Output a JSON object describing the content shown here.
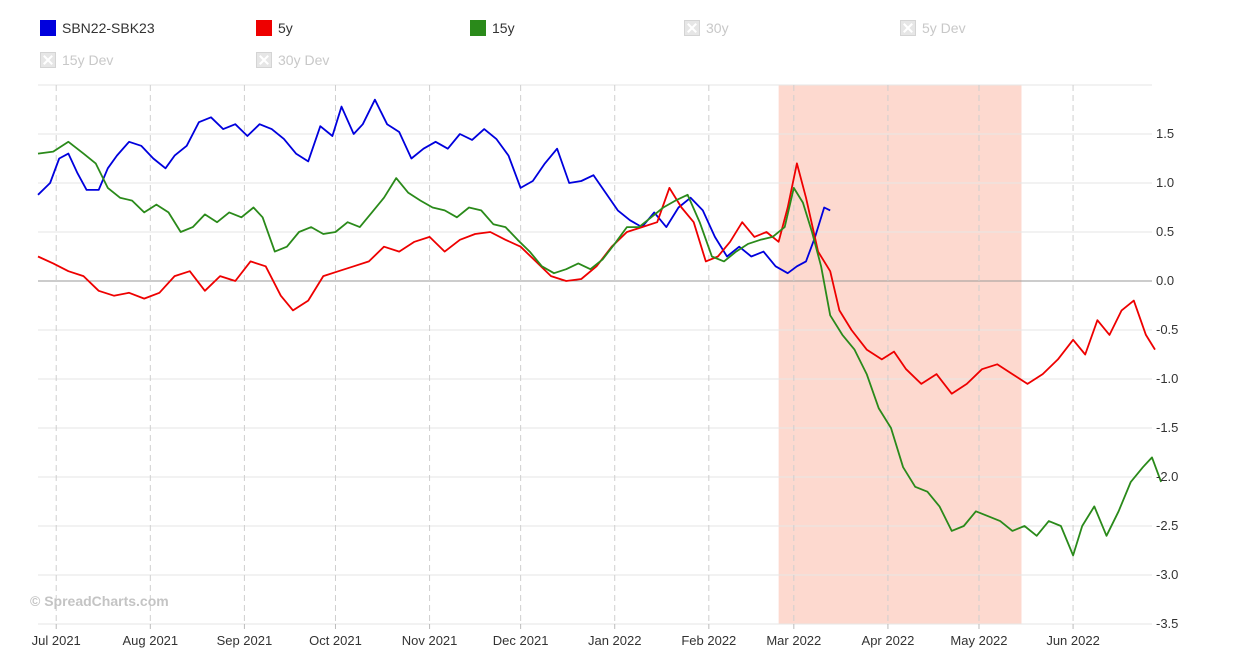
{
  "legend": [
    {
      "name": "SBN22-SBK23",
      "color": "#0000dd",
      "visible": true
    },
    {
      "name": "5y",
      "color": "#ee0000",
      "visible": true
    },
    {
      "name": "15y",
      "color": "#2a8a1a",
      "visible": true
    },
    {
      "name": "30y",
      "visible": false
    },
    {
      "name": "5y Dev",
      "visible": false
    },
    {
      "name": "15y Dev",
      "visible": false
    },
    {
      "name": "30y Dev",
      "visible": false
    }
  ],
  "watermark": "© SpreadCharts.com",
  "chart_data": {
    "type": "line",
    "x_type": "date",
    "x_ticks": [
      "Jul 2021",
      "Aug 2021",
      "Sep 2021",
      "Oct 2021",
      "Nov 2021",
      "Dec 2021",
      "Jan 2022",
      "Feb 2022",
      "Mar 2022",
      "Apr 2022",
      "May 2022",
      "Jun 2022"
    ],
    "x_range": [
      "2021-06-25",
      "2022-06-27"
    ],
    "y_ticks": [
      "1.5",
      "1.0",
      "0.5",
      "0.0",
      "-0.5",
      "-1.0",
      "-1.5",
      "-2.0",
      "-2.5",
      "-3.0",
      "-3.5"
    ],
    "ylim": [
      -3.5,
      2.0
    ],
    "y_axis_side": "right",
    "grid": true,
    "zero_line": true,
    "highlight_band": {
      "from": "2022-02-24",
      "to": "2022-05-15",
      "color": "#fdd9cf"
    },
    "series": [
      {
        "name": "SBN22-SBK23",
        "color": "#0000dd",
        "points": [
          [
            "2021-06-25",
            0.88
          ],
          [
            "2021-06-29",
            1.0
          ],
          [
            "2021-07-02",
            1.25
          ],
          [
            "2021-07-05",
            1.3
          ],
          [
            "2021-07-08",
            1.1
          ],
          [
            "2021-07-11",
            0.93
          ],
          [
            "2021-07-15",
            0.93
          ],
          [
            "2021-07-18",
            1.15
          ],
          [
            "2021-07-21",
            1.28
          ],
          [
            "2021-07-25",
            1.42
          ],
          [
            "2021-07-29",
            1.38
          ],
          [
            "2021-08-02",
            1.25
          ],
          [
            "2021-08-06",
            1.15
          ],
          [
            "2021-08-09",
            1.28
          ],
          [
            "2021-08-13",
            1.38
          ],
          [
            "2021-08-17",
            1.62
          ],
          [
            "2021-08-21",
            1.67
          ],
          [
            "2021-08-25",
            1.55
          ],
          [
            "2021-08-29",
            1.6
          ],
          [
            "2021-09-02",
            1.48
          ],
          [
            "2021-09-06",
            1.6
          ],
          [
            "2021-09-10",
            1.55
          ],
          [
            "2021-09-14",
            1.45
          ],
          [
            "2021-09-18",
            1.3
          ],
          [
            "2021-09-22",
            1.22
          ],
          [
            "2021-09-26",
            1.58
          ],
          [
            "2021-09-30",
            1.48
          ],
          [
            "2021-10-03",
            1.78
          ],
          [
            "2021-10-07",
            1.5
          ],
          [
            "2021-10-10",
            1.6
          ],
          [
            "2021-10-14",
            1.85
          ],
          [
            "2021-10-18",
            1.6
          ],
          [
            "2021-10-22",
            1.52
          ],
          [
            "2021-10-26",
            1.25
          ],
          [
            "2021-10-30",
            1.35
          ],
          [
            "2021-11-03",
            1.42
          ],
          [
            "2021-11-07",
            1.35
          ],
          [
            "2021-11-11",
            1.5
          ],
          [
            "2021-11-15",
            1.44
          ],
          [
            "2021-11-19",
            1.55
          ],
          [
            "2021-11-23",
            1.45
          ],
          [
            "2021-11-27",
            1.28
          ],
          [
            "2021-12-01",
            0.95
          ],
          [
            "2021-12-05",
            1.02
          ],
          [
            "2021-12-09",
            1.2
          ],
          [
            "2021-12-13",
            1.35
          ],
          [
            "2021-12-17",
            1.0
          ],
          [
            "2021-12-21",
            1.02
          ],
          [
            "2021-12-25",
            1.08
          ],
          [
            "2021-12-29",
            0.9
          ],
          [
            "2022-01-02",
            0.72
          ],
          [
            "2022-01-06",
            0.62
          ],
          [
            "2022-01-10",
            0.55
          ],
          [
            "2022-01-14",
            0.7
          ],
          [
            "2022-01-18",
            0.55
          ],
          [
            "2022-01-22",
            0.75
          ],
          [
            "2022-01-26",
            0.85
          ],
          [
            "2022-01-30",
            0.72
          ],
          [
            "2022-02-03",
            0.45
          ],
          [
            "2022-02-07",
            0.25
          ],
          [
            "2022-02-11",
            0.35
          ],
          [
            "2022-02-15",
            0.25
          ],
          [
            "2022-02-19",
            0.3
          ],
          [
            "2022-02-23",
            0.15
          ],
          [
            "2022-02-27",
            0.08
          ],
          [
            "2022-03-02",
            0.15
          ],
          [
            "2022-03-05",
            0.2
          ],
          [
            "2022-03-08",
            0.45
          ],
          [
            "2022-03-11",
            0.75
          ],
          [
            "2022-03-13",
            0.72
          ]
        ]
      },
      {
        "name": "5y",
        "color": "#ee0000",
        "points": [
          [
            "2021-06-25",
            0.25
          ],
          [
            "2021-06-30",
            0.18
          ],
          [
            "2021-07-05",
            0.1
          ],
          [
            "2021-07-10",
            0.05
          ],
          [
            "2021-07-15",
            -0.1
          ],
          [
            "2021-07-20",
            -0.15
          ],
          [
            "2021-07-25",
            -0.12
          ],
          [
            "2021-07-30",
            -0.18
          ],
          [
            "2021-08-04",
            -0.12
          ],
          [
            "2021-08-09",
            0.05
          ],
          [
            "2021-08-14",
            0.1
          ],
          [
            "2021-08-19",
            -0.1
          ],
          [
            "2021-08-24",
            0.05
          ],
          [
            "2021-08-29",
            0.0
          ],
          [
            "2021-09-03",
            0.2
          ],
          [
            "2021-09-08",
            0.15
          ],
          [
            "2021-09-13",
            -0.15
          ],
          [
            "2021-09-17",
            -0.3
          ],
          [
            "2021-09-22",
            -0.2
          ],
          [
            "2021-09-27",
            0.05
          ],
          [
            "2021-10-02",
            0.1
          ],
          [
            "2021-10-07",
            0.15
          ],
          [
            "2021-10-12",
            0.2
          ],
          [
            "2021-10-17",
            0.35
          ],
          [
            "2021-10-22",
            0.3
          ],
          [
            "2021-10-27",
            0.4
          ],
          [
            "2021-11-01",
            0.45
          ],
          [
            "2021-11-06",
            0.3
          ],
          [
            "2021-11-11",
            0.42
          ],
          [
            "2021-11-16",
            0.48
          ],
          [
            "2021-11-21",
            0.5
          ],
          [
            "2021-11-26",
            0.42
          ],
          [
            "2021-12-01",
            0.35
          ],
          [
            "2021-12-06",
            0.2
          ],
          [
            "2021-12-11",
            0.05
          ],
          [
            "2021-12-16",
            0.0
          ],
          [
            "2021-12-21",
            0.02
          ],
          [
            "2021-12-26",
            0.15
          ],
          [
            "2021-12-31",
            0.35
          ],
          [
            "2022-01-05",
            0.5
          ],
          [
            "2022-01-10",
            0.55
          ],
          [
            "2022-01-15",
            0.6
          ],
          [
            "2022-01-19",
            0.95
          ],
          [
            "2022-01-23",
            0.75
          ],
          [
            "2022-01-27",
            0.6
          ],
          [
            "2022-01-31",
            0.2
          ],
          [
            "2022-02-04",
            0.25
          ],
          [
            "2022-02-08",
            0.4
          ],
          [
            "2022-02-12",
            0.6
          ],
          [
            "2022-02-16",
            0.45
          ],
          [
            "2022-02-20",
            0.5
          ],
          [
            "2022-02-24",
            0.4
          ],
          [
            "2022-02-27",
            0.75
          ],
          [
            "2022-03-02",
            1.2
          ],
          [
            "2022-03-05",
            0.85
          ],
          [
            "2022-03-09",
            0.3
          ],
          [
            "2022-03-13",
            0.1
          ],
          [
            "2022-03-16",
            -0.3
          ],
          [
            "2022-03-20",
            -0.5
          ],
          [
            "2022-03-25",
            -0.7
          ],
          [
            "2022-03-30",
            -0.8
          ],
          [
            "2022-04-03",
            -0.72
          ],
          [
            "2022-04-07",
            -0.9
          ],
          [
            "2022-04-12",
            -1.05
          ],
          [
            "2022-04-17",
            -0.95
          ],
          [
            "2022-04-22",
            -1.15
          ],
          [
            "2022-04-27",
            -1.05
          ],
          [
            "2022-05-02",
            -0.9
          ],
          [
            "2022-05-07",
            -0.85
          ],
          [
            "2022-05-12",
            -0.95
          ],
          [
            "2022-05-17",
            -1.05
          ],
          [
            "2022-05-22",
            -0.95
          ],
          [
            "2022-05-27",
            -0.8
          ],
          [
            "2022-06-01",
            -0.6
          ],
          [
            "2022-06-05",
            -0.75
          ],
          [
            "2022-06-09",
            -0.4
          ],
          [
            "2022-06-13",
            -0.55
          ],
          [
            "2022-06-17",
            -0.3
          ],
          [
            "2022-06-21",
            -0.2
          ],
          [
            "2022-06-25",
            -0.55
          ],
          [
            "2022-06-28",
            -0.7
          ]
        ]
      },
      {
        "name": "15y",
        "color": "#2a8a1a",
        "points": [
          [
            "2021-06-25",
            1.3
          ],
          [
            "2021-06-30",
            1.32
          ],
          [
            "2021-07-05",
            1.42
          ],
          [
            "2021-07-10",
            1.3
          ],
          [
            "2021-07-14",
            1.2
          ],
          [
            "2021-07-18",
            0.95
          ],
          [
            "2021-07-22",
            0.85
          ],
          [
            "2021-07-26",
            0.82
          ],
          [
            "2021-07-30",
            0.7
          ],
          [
            "2021-08-03",
            0.78
          ],
          [
            "2021-08-07",
            0.7
          ],
          [
            "2021-08-11",
            0.5
          ],
          [
            "2021-08-15",
            0.55
          ],
          [
            "2021-08-19",
            0.68
          ],
          [
            "2021-08-23",
            0.6
          ],
          [
            "2021-08-27",
            0.7
          ],
          [
            "2021-08-31",
            0.65
          ],
          [
            "2021-09-04",
            0.75
          ],
          [
            "2021-09-07",
            0.65
          ],
          [
            "2021-09-11",
            0.3
          ],
          [
            "2021-09-15",
            0.35
          ],
          [
            "2021-09-19",
            0.5
          ],
          [
            "2021-09-23",
            0.55
          ],
          [
            "2021-09-27",
            0.48
          ],
          [
            "2021-10-01",
            0.5
          ],
          [
            "2021-10-05",
            0.6
          ],
          [
            "2021-10-09",
            0.55
          ],
          [
            "2021-10-13",
            0.7
          ],
          [
            "2021-10-17",
            0.85
          ],
          [
            "2021-10-21",
            1.05
          ],
          [
            "2021-10-25",
            0.9
          ],
          [
            "2021-10-29",
            0.82
          ],
          [
            "2021-11-02",
            0.75
          ],
          [
            "2021-11-06",
            0.72
          ],
          [
            "2021-11-10",
            0.65
          ],
          [
            "2021-11-14",
            0.75
          ],
          [
            "2021-11-18",
            0.72
          ],
          [
            "2021-11-22",
            0.58
          ],
          [
            "2021-11-26",
            0.55
          ],
          [
            "2021-11-30",
            0.42
          ],
          [
            "2021-12-04",
            0.3
          ],
          [
            "2021-12-08",
            0.15
          ],
          [
            "2021-12-12",
            0.08
          ],
          [
            "2021-12-16",
            0.12
          ],
          [
            "2021-12-20",
            0.18
          ],
          [
            "2021-12-24",
            0.12
          ],
          [
            "2021-12-28",
            0.22
          ],
          [
            "2022-01-01",
            0.38
          ],
          [
            "2022-01-05",
            0.55
          ],
          [
            "2022-01-09",
            0.55
          ],
          [
            "2022-01-13",
            0.65
          ],
          [
            "2022-01-17",
            0.75
          ],
          [
            "2022-01-21",
            0.82
          ],
          [
            "2022-01-25",
            0.88
          ],
          [
            "2022-01-29",
            0.6
          ],
          [
            "2022-02-02",
            0.25
          ],
          [
            "2022-02-06",
            0.2
          ],
          [
            "2022-02-10",
            0.3
          ],
          [
            "2022-02-14",
            0.38
          ],
          [
            "2022-02-18",
            0.42
          ],
          [
            "2022-02-22",
            0.45
          ],
          [
            "2022-02-26",
            0.55
          ],
          [
            "2022-03-01",
            0.95
          ],
          [
            "2022-03-04",
            0.8
          ],
          [
            "2022-03-07",
            0.5
          ],
          [
            "2022-03-10",
            0.15
          ],
          [
            "2022-03-13",
            -0.35
          ],
          [
            "2022-03-17",
            -0.55
          ],
          [
            "2022-03-21",
            -0.7
          ],
          [
            "2022-03-25",
            -0.95
          ],
          [
            "2022-03-29",
            -1.3
          ],
          [
            "2022-04-02",
            -1.5
          ],
          [
            "2022-04-06",
            -1.9
          ],
          [
            "2022-04-10",
            -2.1
          ],
          [
            "2022-04-14",
            -2.15
          ],
          [
            "2022-04-18",
            -2.3
          ],
          [
            "2022-04-22",
            -2.55
          ],
          [
            "2022-04-26",
            -2.5
          ],
          [
            "2022-04-30",
            -2.35
          ],
          [
            "2022-05-04",
            -2.4
          ],
          [
            "2022-05-08",
            -2.45
          ],
          [
            "2022-05-12",
            -2.55
          ],
          [
            "2022-05-16",
            -2.5
          ],
          [
            "2022-05-20",
            -2.6
          ],
          [
            "2022-05-24",
            -2.45
          ],
          [
            "2022-05-28",
            -2.5
          ],
          [
            "2022-06-01",
            -2.8
          ],
          [
            "2022-06-04",
            -2.5
          ],
          [
            "2022-06-08",
            -2.3
          ],
          [
            "2022-06-12",
            -2.6
          ],
          [
            "2022-06-16",
            -2.35
          ],
          [
            "2022-06-20",
            -2.05
          ],
          [
            "2022-06-24",
            -1.9
          ],
          [
            "2022-06-27",
            -1.8
          ],
          [
            "2022-06-30",
            -2.05
          ]
        ]
      }
    ]
  }
}
